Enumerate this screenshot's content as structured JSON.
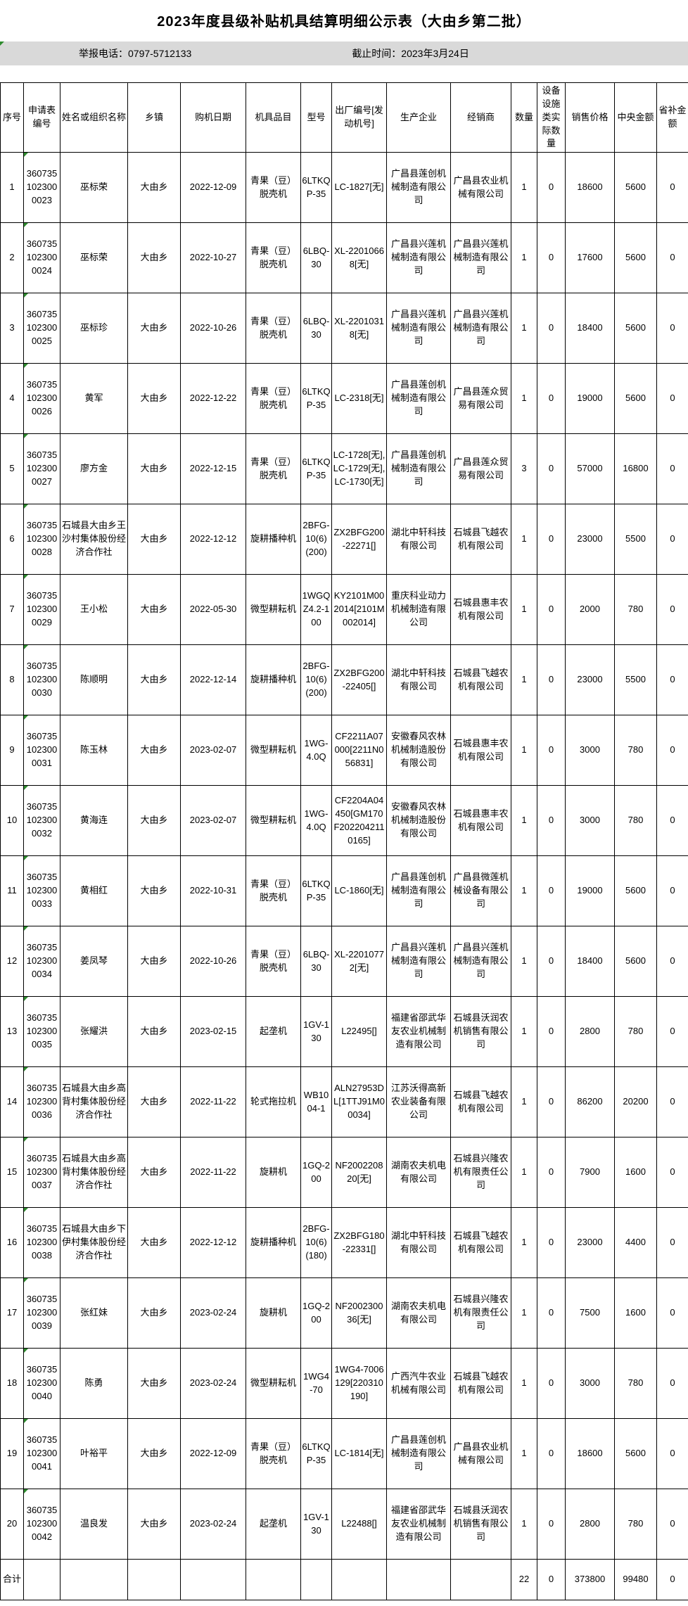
{
  "title": "2023年度县级补贴机具结算明细公示表（大由乡第二批）",
  "info_bar": {
    "report_phone": "举报电话：0797-5712133",
    "deadline": "截止时间：2023年3月24日"
  },
  "colors": {
    "info_bar_bg": "#d9d9d9",
    "table_border": "#000000",
    "cell_error_marker_green": "#2e8b2e"
  },
  "table": {
    "headers": [
      "序号",
      "申请表编号",
      "姓名或组织名称",
      "乡镇",
      "购机日期",
      "机具品目",
      "型号",
      "出厂编号[发动机号]",
      "生产企业",
      "经销商",
      "数量",
      "设备设施类实际数量",
      "销售价格",
      "中央金额",
      "省补金额"
    ],
    "rows": [
      [
        "1",
        "3607351023000023",
        "巫标荣",
        "大由乡",
        "2022-12-09",
        "青果（豆）脱壳机",
        "6LTKQP-35",
        "LC-1827[无]",
        "广昌县莲创机械制造有限公司",
        "广昌县农业机械有限公司",
        "1",
        "0",
        "18600",
        "5600",
        "0"
      ],
      [
        "2",
        "3607351023000024",
        "巫标荣",
        "大由乡",
        "2022-10-27",
        "青果（豆）脱壳机",
        "6LBQ-30",
        "XL-22010668[无]",
        "广昌县兴莲机械制造有限公司",
        "广昌县兴莲机械制造有限公司",
        "1",
        "0",
        "17600",
        "5600",
        "0"
      ],
      [
        "3",
        "3607351023000025",
        "巫标珍",
        "大由乡",
        "2022-10-26",
        "青果（豆）脱壳机",
        "6LBQ-30",
        "XL-22010318[无]",
        "广昌县兴莲机械制造有限公司",
        "广昌县兴莲机械制造有限公司",
        "1",
        "0",
        "18400",
        "5600",
        "0"
      ],
      [
        "4",
        "3607351023000026",
        "黄军",
        "大由乡",
        "2022-12-22",
        "青果（豆）脱壳机",
        "6LTKQP-35",
        "LC-2318[无]",
        "广昌县莲创机械制造有限公司",
        "广昌县莲众贸易有限公司",
        "1",
        "0",
        "19000",
        "5600",
        "0"
      ],
      [
        "5",
        "3607351023000027",
        "廖方金",
        "大由乡",
        "2022-12-15",
        "青果（豆）脱壳机",
        "6LTKQP-35",
        "LC-1728[无],LC-1729[无],LC-1730[无]",
        "广昌县莲创机械制造有限公司",
        "广昌县莲众贸易有限公司",
        "3",
        "0",
        "57000",
        "16800",
        "0"
      ],
      [
        "6",
        "3607351023000028",
        "石城县大由乡王沙村集体股份经济合作社",
        "大由乡",
        "2022-12-12",
        "旋耕播种机",
        "2BFG-10(6)(200)",
        "ZX2BFG200-22271[]",
        "湖北中轩科技有限公司",
        "石城县飞越农机有限公司",
        "1",
        "0",
        "23000",
        "5500",
        "0"
      ],
      [
        "7",
        "3607351023000029",
        "王小松",
        "大由乡",
        "2022-05-30",
        "微型耕耘机",
        "1WGQZ4.2-100",
        "KY2101M002014[2101M002014]",
        "重庆科业动力机械制造有限公司",
        "石城县惠丰农机有限公司",
        "1",
        "0",
        "2000",
        "780",
        "0"
      ],
      [
        "8",
        "3607351023000030",
        "陈顺明",
        "大由乡",
        "2022-12-14",
        "旋耕播种机",
        "2BFG-10(6)(200)",
        "ZX2BFG200-22405[]",
        "湖北中轩科技有限公司",
        "石城县飞越农机有限公司",
        "1",
        "0",
        "23000",
        "5500",
        "0"
      ],
      [
        "9",
        "3607351023000031",
        "陈玉林",
        "大由乡",
        "2023-02-07",
        "微型耕耘机",
        "1WG-4.0Q",
        "CF2211A07000[2211N056831]",
        "安徽春风农林机械制造股份有限公司",
        "石城县惠丰农机有限公司",
        "1",
        "0",
        "3000",
        "780",
        "0"
      ],
      [
        "10",
        "3607351023000032",
        "黄海连",
        "大由乡",
        "2023-02-07",
        "微型耕耘机",
        "1WG-4.0Q",
        "CF2204A04450[GM170F2022042110165]",
        "安徽春风农林机械制造股份有限公司",
        "石城县惠丰农机有限公司",
        "1",
        "0",
        "3000",
        "780",
        "0"
      ],
      [
        "11",
        "3607351023000033",
        "黄相红",
        "大由乡",
        "2022-10-31",
        "青果（豆）脱壳机",
        "6LTKQP-35",
        "LC-1860[无]",
        "广昌县莲创机械制造有限公司",
        "广昌县微莲机械设备有限公司",
        "1",
        "0",
        "19000",
        "5600",
        "0"
      ],
      [
        "12",
        "3607351023000034",
        "姜凤琴",
        "大由乡",
        "2022-10-26",
        "青果（豆）脱壳机",
        "6LBQ-30",
        "XL-22010772[无]",
        "广昌县兴莲机械制造有限公司",
        "广昌县兴莲机械制造有限公司",
        "1",
        "0",
        "18400",
        "5600",
        "0"
      ],
      [
        "13",
        "3607351023000035",
        "张耀洪",
        "大由乡",
        "2023-02-15",
        "起垄机",
        "1GV-130",
        "L22495[]",
        "福建省邵武华友农业机械制造有限公司",
        "石城县沃润农机销售有限公司",
        "1",
        "0",
        "2800",
        "780",
        "0"
      ],
      [
        "14",
        "3607351023000036",
        "石城县大由乡高背村集体股份经济合作社",
        "大由乡",
        "2022-11-22",
        "轮式拖拉机",
        "WB1004-1",
        "ALN27953DL[1TTJ91M00034]",
        "江苏沃得高新农业装备有限公司",
        "石城县飞越农机有限公司",
        "1",
        "0",
        "86200",
        "20200",
        "0"
      ],
      [
        "15",
        "3607351023000037",
        "石城县大由乡高背村集体股份经济合作社",
        "大由乡",
        "2022-11-22",
        "旋耕机",
        "1GQ-200",
        "NF200220820[无]",
        "湖南农夫机电有限公司",
        "石城县兴隆农机有限责任公司",
        "1",
        "0",
        "7900",
        "1600",
        "0"
      ],
      [
        "16",
        "3607351023000038",
        "石城县大由乡下伊村集体股份经济合作社",
        "大由乡",
        "2022-12-12",
        "旋耕播种机",
        "2BFG-10(6)(180)",
        "ZX2BFG180-22331[]",
        "湖北中轩科技有限公司",
        "石城县飞越农机有限公司",
        "1",
        "0",
        "23000",
        "4400",
        "0"
      ],
      [
        "17",
        "3607351023000039",
        "张红妹",
        "大由乡",
        "2023-02-24",
        "旋耕机",
        "1GQ-200",
        "NF200230036[无]",
        "湖南农夫机电有限公司",
        "石城县兴隆农机有限责任公司",
        "1",
        "0",
        "7500",
        "1600",
        "0"
      ],
      [
        "18",
        "3607351023000040",
        "陈勇",
        "大由乡",
        "2023-02-24",
        "微型耕耘机",
        "1WG4-70",
        "1WG4-7006129[220310190]",
        "广西汽牛农业机械有限公司",
        "石城县飞越农机有限公司",
        "1",
        "0",
        "3000",
        "780",
        "0"
      ],
      [
        "19",
        "3607351023000041",
        "叶裕平",
        "大由乡",
        "2022-12-09",
        "青果（豆）脱壳机",
        "6LTKQP-35",
        "LC-1814[无]",
        "广昌县莲创机械制造有限公司",
        "广昌县农业机械有限公司",
        "1",
        "0",
        "18600",
        "5600",
        "0"
      ],
      [
        "20",
        "3607351023000042",
        "温良发",
        "大由乡",
        "2023-02-24",
        "起垄机",
        "1GV-130",
        "L22488[]",
        "福建省邵武华友农业机械制造有限公司",
        "石城县沃润农机销售有限公司",
        "1",
        "0",
        "2800",
        "780",
        "0"
      ]
    ],
    "total_row": [
      "合计",
      "",
      "",
      "",
      "",
      "",
      "",
      "",
      "",
      "",
      "22",
      "0",
      "373800",
      "99480",
      "0"
    ]
  }
}
